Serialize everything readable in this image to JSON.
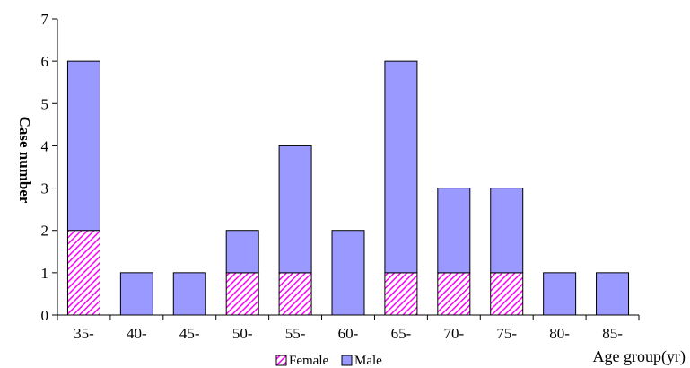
{
  "chart_data": {
    "type": "bar",
    "stacked": true,
    "categories": [
      "35-",
      "40-",
      "45-",
      "50-",
      "55-",
      "60-",
      "65-",
      "70-",
      "75-",
      "80-",
      "85-"
    ],
    "series": [
      {
        "name": "Female",
        "values": [
          2,
          0,
          0,
          1,
          1,
          0,
          1,
          1,
          1,
          0,
          0
        ],
        "color": "#ff00ff",
        "pattern": "diagonal-hatch"
      },
      {
        "name": "Male",
        "values": [
          4,
          1,
          1,
          1,
          3,
          2,
          5,
          2,
          2,
          1,
          1
        ],
        "color": "#9999ff"
      }
    ],
    "xlabel": "Age group(yr)",
    "ylabel": "Case number",
    "ylim": [
      0,
      7
    ],
    "yticks": [
      0,
      1,
      2,
      3,
      4,
      5,
      6,
      7
    ],
    "grid": false,
    "legend_position": "bottom-center"
  }
}
